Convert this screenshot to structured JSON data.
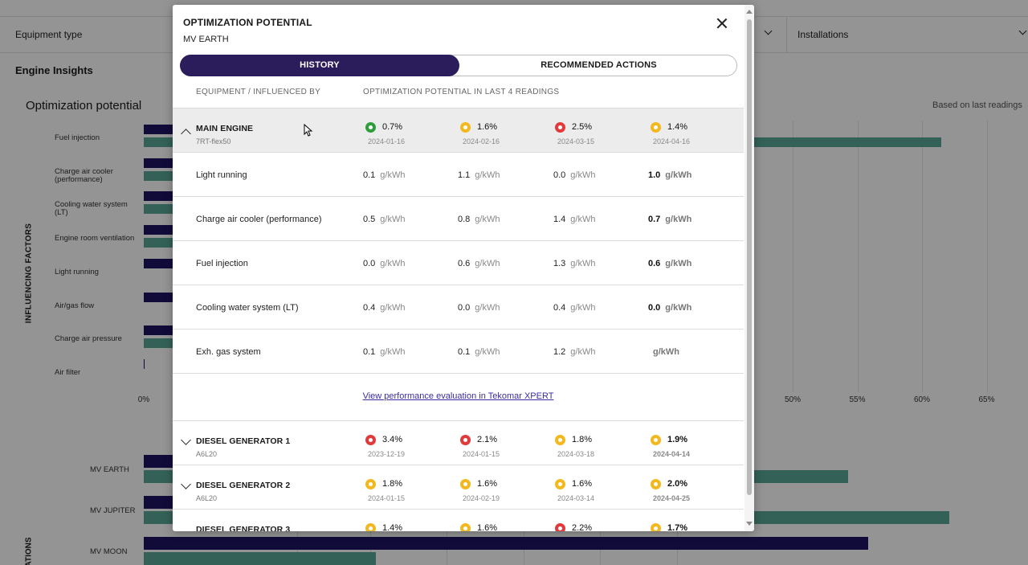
{
  "background": {
    "filters": [
      {
        "label": "Equipment type"
      },
      {
        "label": "Installations"
      }
    ],
    "section_title": "Engine Insights",
    "chart_title": "Optimization potential",
    "based_on": "Based on last readings",
    "y_axis_title": "INFLUENCING FACTORS",
    "y_axis_title_2": "LATIONS"
  },
  "chart_data": [
    {
      "type": "bar",
      "title": "Optimization potential",
      "ylabel": "INFLUENCING FACTORS",
      "categories": [
        "Fuel injection",
        "Charge air cooler (performance)",
        "Cooling water system (LT)",
        "Engine room ventilation",
        "Light running",
        "Air/gas flow",
        "Charge air pressure",
        "Air filter"
      ],
      "x_ticks": [
        "0%",
        "50%",
        "55%",
        "60%",
        "65%"
      ],
      "xlim": [
        0,
        65
      ],
      "series": [
        {
          "values": [
            null,
            null,
            null,
            null,
            null,
            null,
            null,
            1.5
          ]
        },
        {
          "values": [
            61.5,
            null,
            null,
            null,
            null,
            null,
            null,
            null
          ]
        }
      ]
    },
    {
      "type": "bar",
      "ylabel": "LATIONS",
      "categories": [
        "MV EARTH",
        "MV JUPITER",
        "MV MOON"
      ],
      "series": [
        {
          "values": [
            null,
            null,
            49
          ]
        },
        {
          "values": [
            51,
            59,
            17
          ]
        }
      ]
    }
  ],
  "modal": {
    "title": "OPTIMIZATION POTENTIAL",
    "subtitle": "MV EARTH",
    "tabs": [
      {
        "label": "HISTORY",
        "active": true
      },
      {
        "label": "RECOMMENDED ACTIONS",
        "active": false
      }
    ],
    "columns": {
      "equipment": "EQUIPMENT / INFLUENCED BY",
      "potential": "OPTIMIZATION POTENTIAL IN LAST 4 READINGS"
    },
    "main_engine": {
      "name": "MAIN ENGINE",
      "model": "7RT-flex50",
      "readings": [
        {
          "value": "0.7%",
          "date": "2024-01-16",
          "status": "green"
        },
        {
          "value": "1.6%",
          "date": "2024-02-16",
          "status": "yellow"
        },
        {
          "value": "2.5%",
          "date": "2024-03-15",
          "status": "red"
        },
        {
          "value": "1.4%",
          "date": "2024-04-16",
          "status": "yellow"
        }
      ],
      "factors": [
        {
          "name": "Light running",
          "values": [
            "0.1",
            "1.1",
            "0.0",
            "1.0"
          ]
        },
        {
          "name": "Charge air cooler (performance)",
          "values": [
            "0.5",
            "0.8",
            "1.4",
            "0.7"
          ]
        },
        {
          "name": "Fuel injection",
          "values": [
            "0.0",
            "0.6",
            "1.3",
            "0.6"
          ]
        },
        {
          "name": "Cooling water system (LT)",
          "values": [
            "0.4",
            "0.0",
            "0.4",
            "0.0"
          ]
        },
        {
          "name": "Exh. gas system",
          "values": [
            "0.1",
            "0.1",
            "1.2",
            ""
          ]
        }
      ],
      "unit": "g/kWh"
    },
    "link_text": "View performance evaluation in Tekomar XPERT",
    "diesel_gen_1": {
      "name": "DIESEL GENERATOR 1",
      "model": "A6L20",
      "readings": [
        {
          "value": "3.4%",
          "date": "2023-12-19",
          "status": "red"
        },
        {
          "value": "2.1%",
          "date": "2024-01-15",
          "status": "red"
        },
        {
          "value": "1.8%",
          "date": "2024-03-18",
          "status": "yellow"
        },
        {
          "value": "1.9%",
          "date": "2024-04-14",
          "status": "yellow"
        }
      ]
    },
    "diesel_gen_2": {
      "name": "DIESEL GENERATOR 2",
      "model": "A6L20",
      "readings": [
        {
          "value": "1.8%",
          "date": "2024-01-15",
          "status": "yellow"
        },
        {
          "value": "1.6%",
          "date": "2024-02-19",
          "status": "yellow"
        },
        {
          "value": "1.6%",
          "date": "2024-03-14",
          "status": "yellow"
        },
        {
          "value": "2.0%",
          "date": "2024-04-25",
          "status": "yellow"
        }
      ]
    },
    "diesel_gen_3": {
      "name": "DIESEL GENERATOR 3",
      "readings": [
        {
          "value": "1.4%",
          "status": "yellow"
        },
        {
          "value": "1.6%",
          "status": "yellow"
        },
        {
          "value": "2.2%",
          "status": "red"
        },
        {
          "value": "1.7%",
          "status": "yellow"
        }
      ]
    }
  },
  "colors": {
    "navy": "#1c1462",
    "teal": "#5aa896",
    "tab_active": "#2b1c5c",
    "status_green": "#2e9d3a",
    "status_yellow": "#f2b81d",
    "status_red": "#e23a3a",
    "link": "#3a2ca0"
  }
}
